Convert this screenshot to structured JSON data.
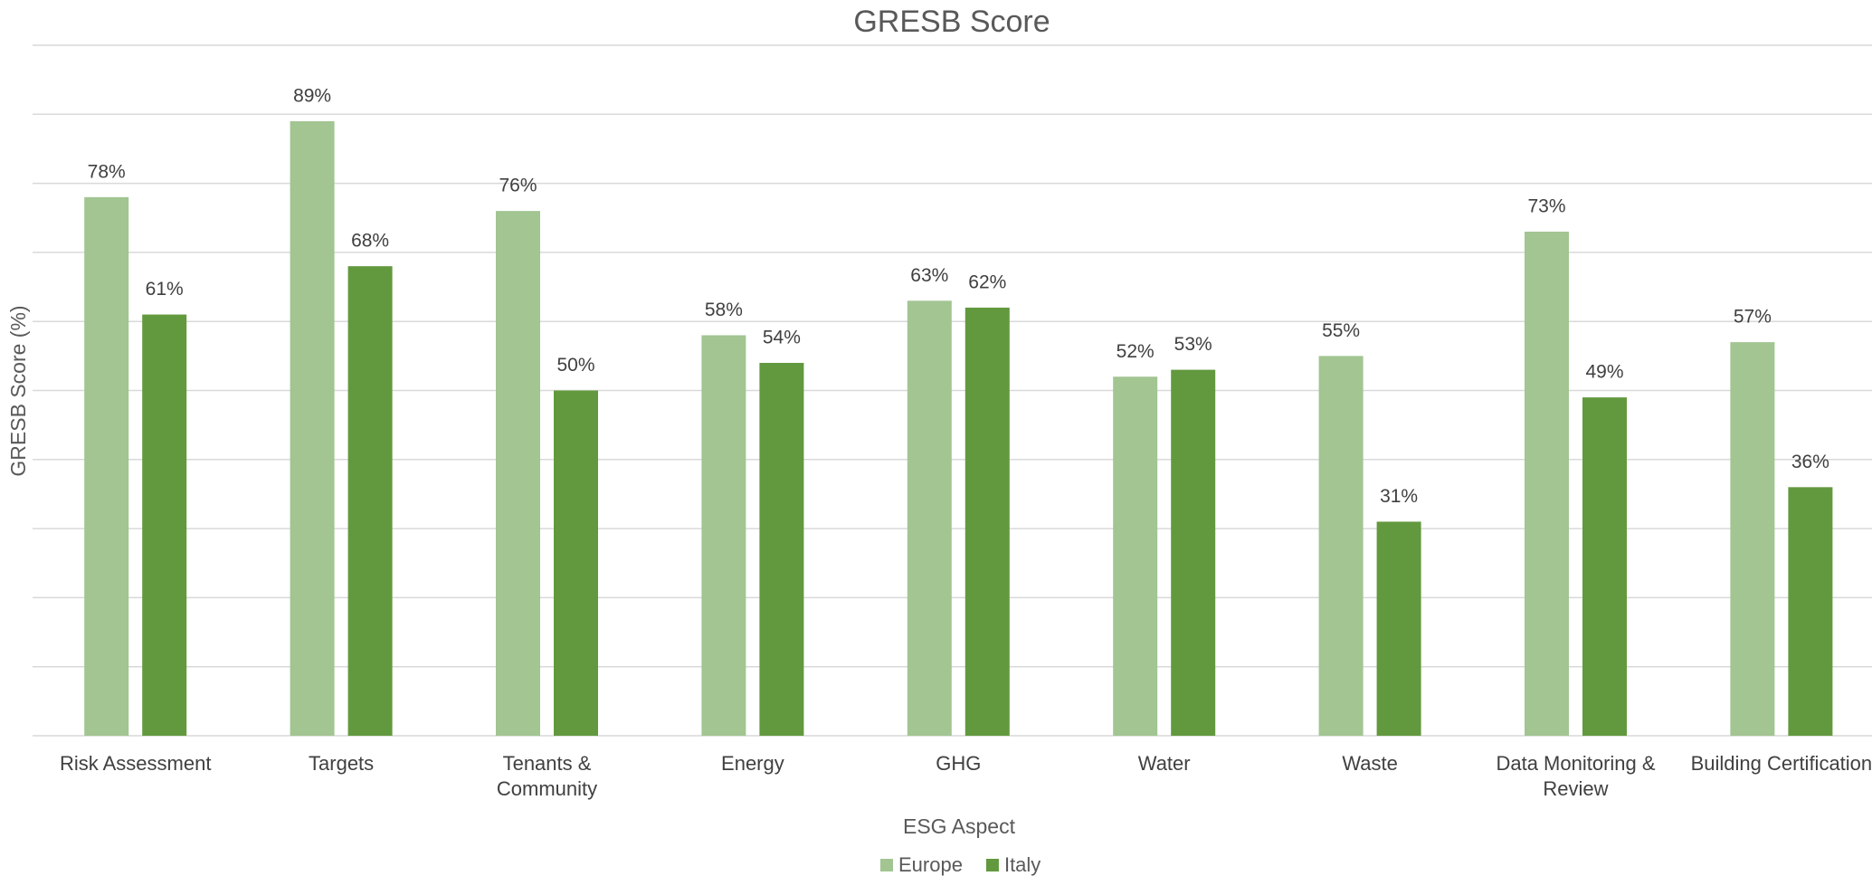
{
  "chart_data": {
    "type": "bar",
    "title": "GRESB Score",
    "x_label": "ESG Aspect",
    "y_label": "GRESB Score (%)",
    "categories": [
      "Risk Assessment",
      "Targets",
      "Tenants & Community",
      "Energy",
      "GHG",
      "Water",
      "Waste",
      "Data Monitoring & Review",
      "Building Certification"
    ],
    "series": [
      {
        "name": "Europe",
        "color": "#a2c592",
        "values": [
          78,
          89,
          76,
          58,
          63,
          52,
          55,
          73,
          57
        ],
        "value_labels": [
          "78%",
          "89%",
          "76%",
          "58%",
          "63%",
          "52%",
          "55%",
          "73%",
          "57%"
        ]
      },
      {
        "name": "Italy",
        "color": "#62993e",
        "values": [
          61,
          68,
          50,
          54,
          62,
          53,
          31,
          49,
          36
        ],
        "value_labels": [
          "61%",
          "68%",
          "50%",
          "54%",
          "62%",
          "53%",
          "31%",
          "49%",
          "36%"
        ]
      }
    ],
    "ylim": [
      0,
      100
    ],
    "yticks": [
      0,
      10,
      20,
      30,
      40,
      50,
      60,
      70,
      80,
      90,
      100
    ],
    "grid": true,
    "legend": "bottom"
  }
}
